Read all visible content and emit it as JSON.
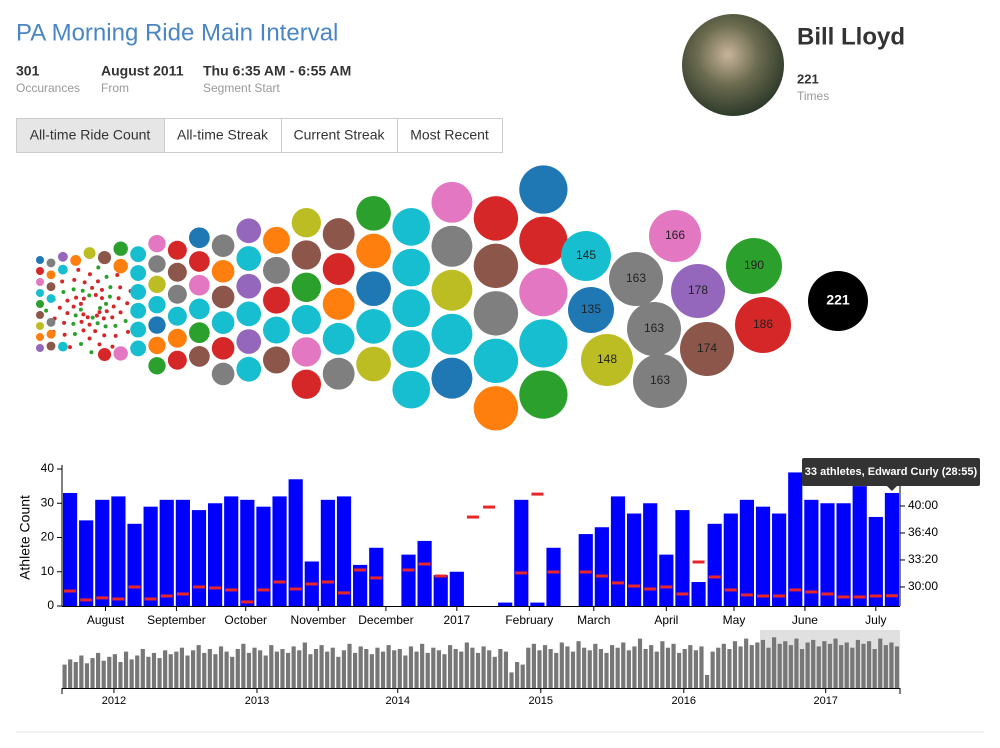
{
  "header": {
    "title": "PA Morning Ride Main Interval",
    "stats": [
      {
        "value": "301",
        "label": "Occurances"
      },
      {
        "value": "August 2011",
        "label": "From"
      },
      {
        "value": "Thu 6:35 AM - 6:55 AM",
        "label": "Segment Start"
      }
    ]
  },
  "profile": {
    "name": "Bill Lloyd",
    "count": "221",
    "count_label": "Times"
  },
  "tabs": [
    "All-time Ride Count",
    "All-time Streak",
    "Current Streak",
    "Most Recent"
  ],
  "chart_data": [
    {
      "type": "bubble",
      "values": [
        145,
        135,
        163,
        148,
        163,
        163,
        166,
        178,
        174,
        190,
        186,
        221
      ],
      "colors": [
        "#17becf",
        "#1f77b4",
        "#7f7f7f",
        "#bcbd22",
        "#7f7f7f",
        "#7f7f7f",
        "#e377c2",
        "#9467bd",
        "#8c564b",
        "#2ca02c",
        "#d62728",
        "#000000"
      ]
    },
    {
      "type": "bar",
      "y_label": "Athlete Count",
      "ylim": [
        0,
        40
      ],
      "yticks": [
        0,
        10,
        20,
        30,
        40
      ],
      "y2lim": [
        1659,
        2674
      ],
      "y2ticks": [
        {
          "value": 1800,
          "label": "30:00"
        },
        {
          "value": 2000,
          "label": "33:20"
        },
        {
          "value": 2200,
          "label": "36:40"
        },
        {
          "value": 2400,
          "label": "40:00"
        }
      ],
      "xlim": [
        0,
        52
      ],
      "xticks": [
        {
          "value": 2.7,
          "label": "August"
        },
        {
          "value": 7.1,
          "label": "September"
        },
        {
          "value": 11.4,
          "label": "October"
        },
        {
          "value": 15.9,
          "label": "November"
        },
        {
          "value": 20.1,
          "label": "December"
        },
        {
          "value": 24.5,
          "label": "2017"
        },
        {
          "value": 29.0,
          "label": "February"
        },
        {
          "value": 33.0,
          "label": "March"
        },
        {
          "value": 37.5,
          "label": "April"
        },
        {
          "value": 41.7,
          "label": "May"
        },
        {
          "value": 46.1,
          "label": "June"
        },
        {
          "value": 50.5,
          "label": "July"
        }
      ],
      "series": [
        {
          "color": "#0000ff",
          "values": [
            33,
            25,
            31,
            32,
            24,
            29,
            31,
            31,
            28,
            30,
            32,
            31,
            29,
            32,
            37,
            13,
            31,
            32,
            12,
            17,
            null,
            15,
            19,
            9,
            10,
            null,
            null,
            1,
            31,
            1,
            17,
            null,
            21,
            23,
            32,
            27,
            30,
            15,
            28,
            7,
            24,
            27,
            31,
            29,
            27,
            39,
            31,
            30,
            30,
            35,
            26,
            33
          ]
        },
        {
          "color": "#e8262a",
          "axis": "y2",
          "values": [
            1770,
            1704,
            1719,
            1711,
            1800,
            1711,
            1733,
            1748,
            1800,
            1793,
            1778,
            1689,
            1778,
            1837,
            1785,
            1822,
            1837,
            1756,
            1926,
            1867,
            null,
            1926,
            1970,
            1881,
            null,
            2318,
            2392,
            null,
            1904,
            2488,
            1911,
            null,
            1911,
            1881,
            1830,
            1807,
            1785,
            1800,
            1748,
            1985,
            1874,
            1778,
            1741,
            1733,
            1733,
            1778,
            1763,
            1748,
            1726,
            1726,
            1733,
            1735
          ]
        }
      ],
      "tooltip": "33 athletes, Edward Curly (28:55)"
    },
    {
      "type": "bar",
      "color": "#777777",
      "ylim": [
        0,
        40
      ],
      "xlim": [
        0,
        150
      ],
      "xticks": [
        {
          "value": 9.3,
          "label": "2012"
        },
        {
          "value": 34.9,
          "label": "2013"
        },
        {
          "value": 60.1,
          "label": "2014"
        },
        {
          "value": 85.7,
          "label": "2015"
        },
        {
          "value": 111.3,
          "label": "2016"
        },
        {
          "value": 136.7,
          "label": "2017"
        }
      ],
      "values": [
        18,
        22,
        20,
        25,
        19,
        23,
        27,
        21,
        24,
        26,
        20,
        28,
        22,
        25,
        30,
        24,
        27,
        23,
        29,
        26,
        28,
        31,
        25,
        29,
        33,
        27,
        30,
        26,
        32,
        28,
        24,
        30,
        34,
        27,
        31,
        29,
        25,
        33,
        28,
        30,
        27,
        32,
        29,
        35,
        26,
        30,
        33,
        28,
        31,
        24,
        29,
        34,
        27,
        32,
        30,
        26,
        31,
        28,
        33,
        29,
        30,
        25,
        32,
        28,
        34,
        27,
        31,
        29,
        26,
        33,
        30,
        28,
        35,
        31,
        27,
        32,
        29,
        24,
        30,
        28,
        12,
        20,
        18,
        31,
        34,
        29,
        33,
        30,
        27,
        35,
        32,
        28,
        36,
        31,
        29,
        34,
        30,
        27,
        33,
        31,
        35,
        29,
        32,
        38,
        30,
        33,
        28,
        36,
        31,
        34,
        27,
        30,
        33,
        29,
        32,
        10,
        28,
        31,
        34,
        30,
        36,
        32,
        38,
        33,
        35,
        37,
        31,
        39,
        34,
        36,
        33,
        38,
        30,
        35,
        37,
        32,
        36,
        34,
        38,
        33,
        35,
        31,
        37,
        34,
        36,
        30,
        38,
        33,
        35,
        32
      ]
    }
  ]
}
